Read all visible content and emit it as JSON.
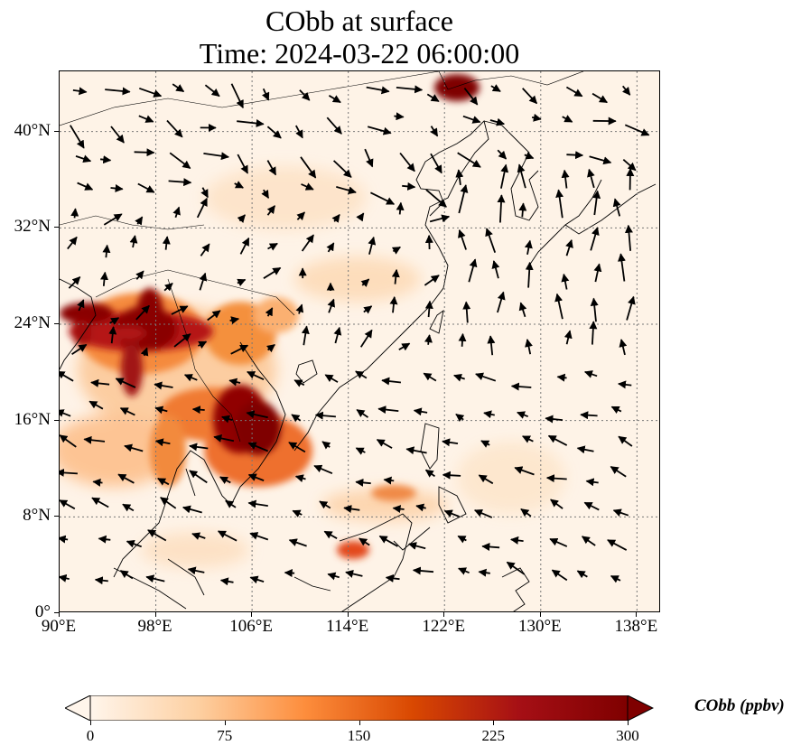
{
  "title": {
    "line1": "CObb at surface",
    "line2": "Time: 2024-03-22 06:00:00"
  },
  "map": {
    "extent": {
      "lon": [
        90,
        140
      ],
      "lat": [
        0,
        45
      ]
    },
    "gridlines": true,
    "features": [
      "coastlines",
      "country-borders",
      "wind-vectors",
      "co-concentration-field"
    ]
  },
  "axes": {
    "y_ticks": [
      {
        "label": "0°",
        "lat": 0
      },
      {
        "label": "8°N",
        "lat": 8
      },
      {
        "label": "16°N",
        "lat": 16
      },
      {
        "label": "24°N",
        "lat": 24
      },
      {
        "label": "32°N",
        "lat": 32
      },
      {
        "label": "40°N",
        "lat": 40
      }
    ],
    "x_ticks": [
      {
        "label": "90°E",
        "lon": 90
      },
      {
        "label": "98°E",
        "lon": 98
      },
      {
        "label": "106°E",
        "lon": 106
      },
      {
        "label": "114°E",
        "lon": 114
      },
      {
        "label": "122°E",
        "lon": 122
      },
      {
        "label": "130°E",
        "lon": 130
      },
      {
        "label": "138°E",
        "lon": 138
      }
    ]
  },
  "colorbar": {
    "label": "CObb (ppbv)",
    "min": 0,
    "max": 300,
    "extend": "both",
    "colormap": [
      "#fff5eb",
      "#fdd0a2",
      "#fd8d3c",
      "#d94801",
      "#a50f15",
      "#7f0000"
    ],
    "ticks": [
      {
        "label": "0",
        "value": 0
      },
      {
        "label": "75",
        "value": 75
      },
      {
        "label": "150",
        "value": 150
      },
      {
        "label": "225",
        "value": 225
      },
      {
        "label": "300",
        "value": 300
      }
    ]
  }
}
